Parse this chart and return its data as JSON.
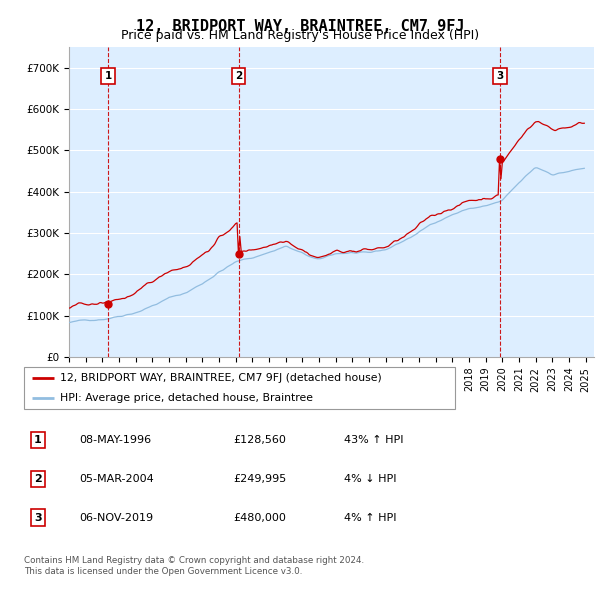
{
  "title": "12, BRIDPORT WAY, BRAINTREE, CM7 9FJ",
  "subtitle": "Price paid vs. HM Land Registry's House Price Index (HPI)",
  "ylim": [
    0,
    750000
  ],
  "yticks": [
    0,
    100000,
    200000,
    300000,
    400000,
    500000,
    600000,
    700000
  ],
  "ytick_labels": [
    "£0",
    "£100K",
    "£200K",
    "£300K",
    "£400K",
    "£500K",
    "£600K",
    "£700K"
  ],
  "x_start_year": 1994,
  "x_end_year": 2025,
  "sales": [
    {
      "year": 1996.35,
      "price": 128560,
      "label": "1"
    },
    {
      "year": 2004.17,
      "price": 249995,
      "label": "2"
    },
    {
      "year": 2019.85,
      "price": 480000,
      "label": "3"
    }
  ],
  "hpi_line_color": "#92bde0",
  "price_line_color": "#cc0000",
  "sale_dot_color": "#cc0000",
  "sale_vline_color": "#cc0000",
  "label_box_color": "#cc0000",
  "chart_bg_color": "#ddeeff",
  "grid_color": "#ffffff",
  "legend_entries": [
    "12, BRIDPORT WAY, BRAINTREE, CM7 9FJ (detached house)",
    "HPI: Average price, detached house, Braintree"
  ],
  "table_entries": [
    {
      "num": "1",
      "date": "08-MAY-1996",
      "price": "£128,560",
      "hpi": "43% ↑ HPI"
    },
    {
      "num": "2",
      "date": "05-MAR-2004",
      "price": "£249,995",
      "hpi": "4% ↓ HPI"
    },
    {
      "num": "3",
      "date": "06-NOV-2019",
      "price": "£480,000",
      "hpi": "4% ↑ HPI"
    }
  ],
  "footnote": "Contains HM Land Registry data © Crown copyright and database right 2024.\nThis data is licensed under the Open Government Licence v3.0.",
  "title_fontsize": 11,
  "subtitle_fontsize": 9,
  "tick_fontsize": 7.5
}
